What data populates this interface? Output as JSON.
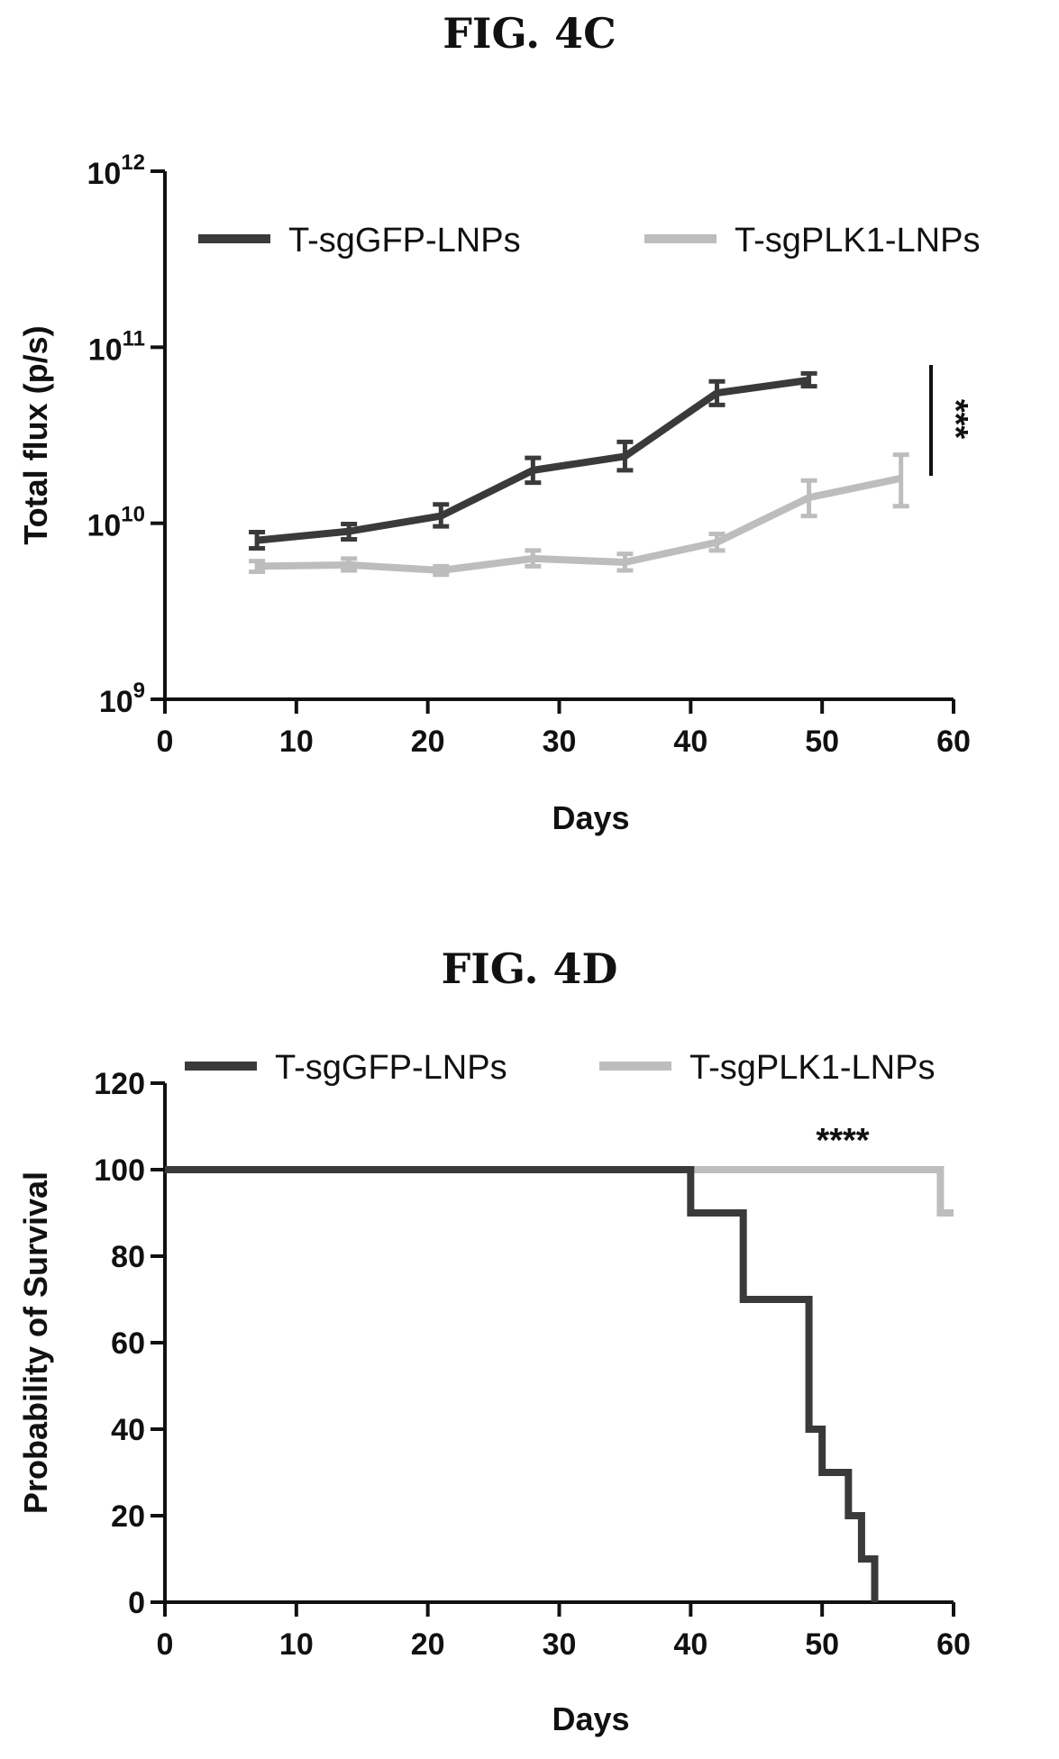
{
  "figures": {
    "c": {
      "label": "FIG. 4C"
    },
    "d": {
      "label": "FIG. 4D"
    }
  },
  "colors": {
    "dark": "#3a3a3a",
    "light": "#bdbdbd",
    "axis": "#111111"
  },
  "chart_data": [
    {
      "type": "line",
      "ylabel": "Total flux (p/s)",
      "xlabel": "Days",
      "yscale": "log",
      "ylim": [
        1000000000,
        1000000000000
      ],
      "xlim": [
        0,
        60
      ],
      "xticks": [
        "0",
        "10",
        "20",
        "30",
        "40",
        "50",
        "60"
      ],
      "ytick_labels": [
        {
          "base": "10",
          "exp": "9"
        },
        {
          "base": "10",
          "exp": "10"
        },
        {
          "base": "10",
          "exp": "11"
        },
        {
          "base": "10",
          "exp": "12"
        }
      ],
      "legend_position": "top",
      "annotation": "***",
      "series": [
        {
          "name": "T-sgGFP-LNPs",
          "x": [
            7,
            14,
            21,
            28,
            35,
            42,
            49
          ],
          "y": [
            8000000000,
            9000000000,
            11000000000,
            20000000000,
            24000000000,
            55000000000,
            65000000000
          ],
          "err_low": [
            7200000000,
            8100000000,
            9600000000,
            17000000000,
            20000000000,
            47000000000,
            60000000000
          ],
          "err_high": [
            8900000000,
            9900000000,
            12800000000,
            23500000000,
            29000000000,
            64000000000,
            71000000000
          ]
        },
        {
          "name": "T-sgPLK1-LNPs",
          "x": [
            7,
            14,
            21,
            28,
            35,
            42,
            49,
            56
          ],
          "y": [
            5700000000,
            5800000000,
            5400000000,
            6300000000,
            6000000000,
            7800000000,
            14000000000,
            18000000000
          ],
          "err_low": [
            5300000000,
            5400000000,
            5100000000,
            5700000000,
            5400000000,
            7000000000,
            11000000000,
            12500000000
          ],
          "err_high": [
            6100000000,
            6300000000,
            5700000000,
            7000000000,
            6700000000,
            8700000000,
            17500000000,
            24500000000
          ]
        }
      ]
    },
    {
      "type": "line",
      "ylabel": "Probability of Survival",
      "xlabel": "Days",
      "xlim": [
        0,
        60
      ],
      "ylim": [
        0,
        120
      ],
      "xticks": [
        "0",
        "10",
        "20",
        "30",
        "40",
        "50",
        "60"
      ],
      "yticks": [
        "0",
        "20",
        "40",
        "60",
        "80",
        "100",
        "120"
      ],
      "legend_position": "top",
      "annotation": "****",
      "series": [
        {
          "name": "T-sgGFP-LNPs",
          "step": true,
          "x": [
            0,
            40,
            44,
            49,
            50,
            52,
            53,
            54
          ],
          "y": [
            100,
            90,
            70,
            40,
            30,
            20,
            10,
            0
          ]
        },
        {
          "name": "T-sgPLK1-LNPs",
          "step": true,
          "x": [
            0,
            59,
            60
          ],
          "y": [
            100,
            90,
            90
          ]
        }
      ]
    }
  ]
}
